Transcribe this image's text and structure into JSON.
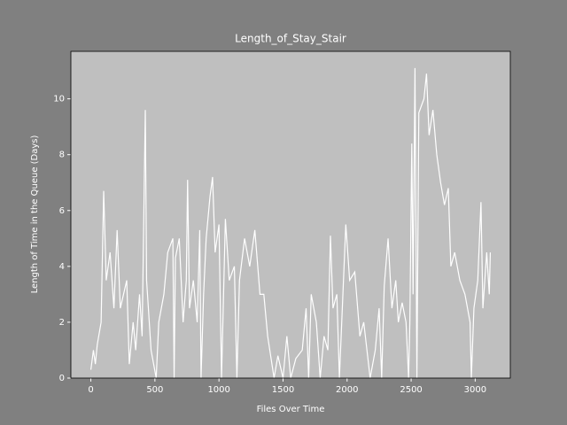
{
  "chart_data": {
    "type": "line",
    "title": "Length_of_Stay_Stair",
    "x_label": "Files Over Time",
    "y_label": "Length of Time in the Queue (Days)",
    "series": [
      {
        "color": "#ffffff",
        "x": [
          0,
          20,
          35,
          50,
          80,
          100,
          120,
          150,
          180,
          205,
          230,
          280,
          300,
          330,
          350,
          380,
          400,
          425,
          435,
          470,
          510,
          530,
          570,
          600,
          640,
          650,
          660,
          690,
          720,
          745,
          755,
          770,
          800,
          830,
          850,
          860,
          880,
          900,
          930,
          950,
          970,
          1000,
          1020,
          1050,
          1080,
          1120,
          1140,
          1160,
          1200,
          1240,
          1280,
          1320,
          1350,
          1380,
          1430,
          1460,
          1500,
          1530,
          1560,
          1600,
          1650,
          1680,
          1700,
          1720,
          1760,
          1790,
          1820,
          1850,
          1870,
          1890,
          1920,
          1940,
          1990,
          2020,
          2060,
          2100,
          2130,
          2180,
          2220,
          2250,
          2270,
          2290,
          2320,
          2350,
          2380,
          2400,
          2430,
          2460,
          2480,
          2490,
          2505,
          2515,
          2530,
          2545,
          2560,
          2600,
          2620,
          2640,
          2670,
          2700,
          2730,
          2760,
          2790,
          2810,
          2840,
          2880,
          2920,
          2960,
          2970,
          2990,
          3020,
          3045,
          3060,
          3090,
          3110,
          3118
        ],
        "values": [
          0.3,
          1.0,
          0.5,
          1.2,
          2.0,
          6.7,
          3.5,
          4.5,
          2.5,
          5.3,
          2.5,
          3.5,
          0.5,
          2.0,
          1.0,
          3.0,
          1.5,
          9.6,
          3.5,
          1.0,
          0.0,
          2.0,
          3.0,
          4.5,
          5.0,
          0.0,
          4.3,
          5.0,
          2.0,
          3.5,
          7.1,
          2.5,
          3.5,
          2.0,
          5.3,
          0.0,
          3.0,
          5.0,
          6.5,
          7.2,
          4.5,
          5.5,
          0.0,
          5.7,
          3.5,
          4.0,
          0.0,
          3.5,
          5.0,
          4.0,
          5.3,
          3.0,
          3.0,
          1.5,
          0.0,
          0.8,
          0.0,
          1.5,
          0.0,
          0.7,
          1.0,
          2.5,
          0.0,
          3.0,
          2.0,
          0.0,
          1.5,
          1.0,
          5.1,
          2.5,
          3.0,
          0.0,
          5.5,
          3.5,
          3.8,
          1.5,
          2.0,
          0.0,
          1.0,
          2.5,
          0.0,
          3.3,
          5.0,
          2.5,
          3.5,
          2.0,
          2.7,
          2.0,
          0.0,
          2.0,
          8.4,
          3.0,
          11.1,
          0.0,
          9.5,
          10.0,
          10.9,
          8.7,
          9.6,
          8.0,
          7.0,
          6.2,
          6.8,
          4.0,
          4.5,
          3.5,
          3.0,
          2.0,
          0.0,
          2.5,
          3.5,
          6.3,
          2.5,
          4.5,
          3.0,
          4.5
        ]
      }
    ],
    "xlim": [
      -156,
      3274
    ],
    "ylim": [
      0,
      11.7
    ],
    "xticks": [
      0,
      500,
      1000,
      1500,
      2000,
      2500,
      3000
    ],
    "yticks": [
      0,
      2,
      4,
      6,
      8,
      10
    ],
    "background": "#808080",
    "plot_background": "#bfbfbf"
  }
}
